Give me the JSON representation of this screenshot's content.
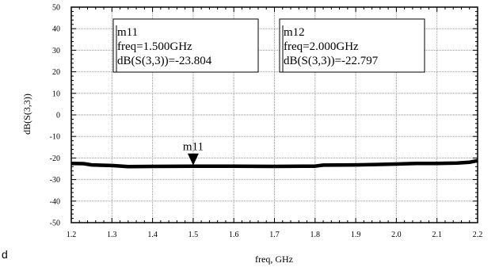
{
  "chart_data": {
    "type": "line",
    "title": "",
    "xlabel": "freq, GHz",
    "ylabel": "dB(S(3,3))",
    "xlim": [
      1.2,
      2.2
    ],
    "ylim": [
      -50,
      50
    ],
    "x_ticks": [
      "1.2",
      "1.3",
      "1.4",
      "1.5",
      "1.6",
      "1.7",
      "1.8",
      "1.9",
      "2.0",
      "2.1",
      "2.2"
    ],
    "y_ticks": [
      "50",
      "40",
      "30",
      "20",
      "10",
      "0",
      "-10",
      "-20",
      "-30",
      "-40",
      "-50"
    ],
    "grid": true,
    "series": [
      {
        "color": "#000000",
        "x": [
          1.2,
          1.23,
          1.25,
          1.3,
          1.34,
          1.4,
          1.5,
          1.6,
          1.7,
          1.8,
          1.82,
          1.9,
          1.95,
          2.0,
          2.05,
          2.1,
          2.15,
          2.18,
          2.2
        ],
        "y": [
          -22.5,
          -22.6,
          -23.2,
          -23.5,
          -24.0,
          -23.9,
          -23.8,
          -23.8,
          -23.9,
          -23.8,
          -23.3,
          -23.2,
          -23.0,
          -22.8,
          -22.5,
          -22.5,
          -22.3,
          -22.0,
          -21.2
        ]
      }
    ],
    "markers": [
      {
        "name": "m11",
        "x": 1.5,
        "y": -23.804,
        "label": "m11",
        "readout": [
          "m11",
          "freq=1.500GHz",
          "dB(S(3,3))=-23.804"
        ]
      },
      {
        "name": "m12",
        "x": 2.0,
        "y": -22.797,
        "readout": [
          "m12",
          "freq=2.000GHz",
          "dB(S(3,3))=-22.797"
        ]
      }
    ]
  },
  "stray_text": "d"
}
